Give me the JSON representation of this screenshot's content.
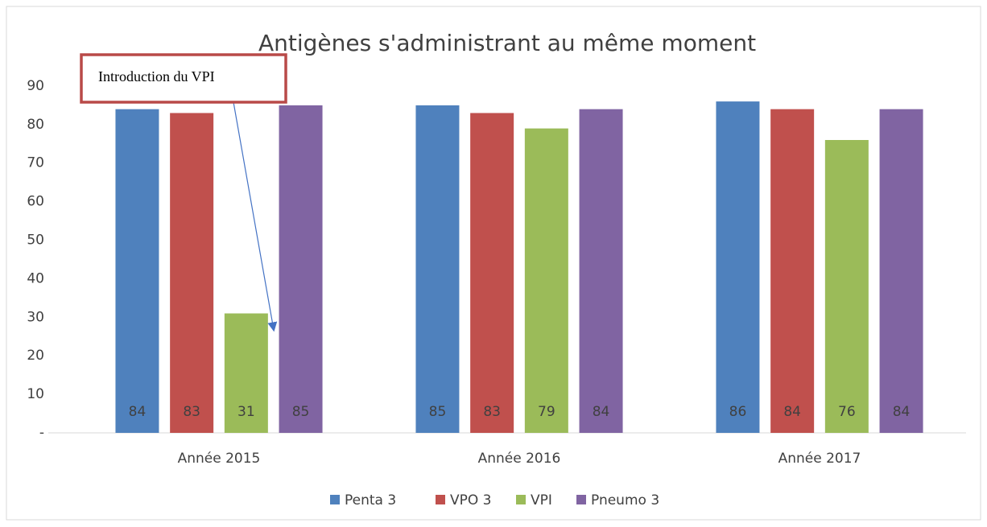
{
  "chart_data": {
    "type": "bar",
    "title": "Antigènes s'administrant au même moment",
    "annotation": "Introduction du VPI",
    "categories": [
      "Année 2015",
      "Année 2016",
      "Année 2017"
    ],
    "series": [
      {
        "name": "Penta 3",
        "color": "#4f81bd",
        "values": [
          84,
          85,
          86
        ]
      },
      {
        "name": "VPO 3",
        "color": "#c0504d",
        "values": [
          83,
          83,
          84
        ]
      },
      {
        "name": "VPI",
        "color": "#9bbb59",
        "values": [
          31,
          79,
          76
        ]
      },
      {
        "name": "Pneumo 3",
        "color": "#8064a2",
        "values": [
          85,
          84,
          84
        ]
      }
    ],
    "ylim": [
      0,
      95
    ],
    "yticks": [
      {
        "value": 0,
        "label": "-"
      },
      10,
      20,
      30,
      40,
      50,
      60,
      70,
      80,
      90
    ],
    "grid": false,
    "legend": "bottom"
  }
}
